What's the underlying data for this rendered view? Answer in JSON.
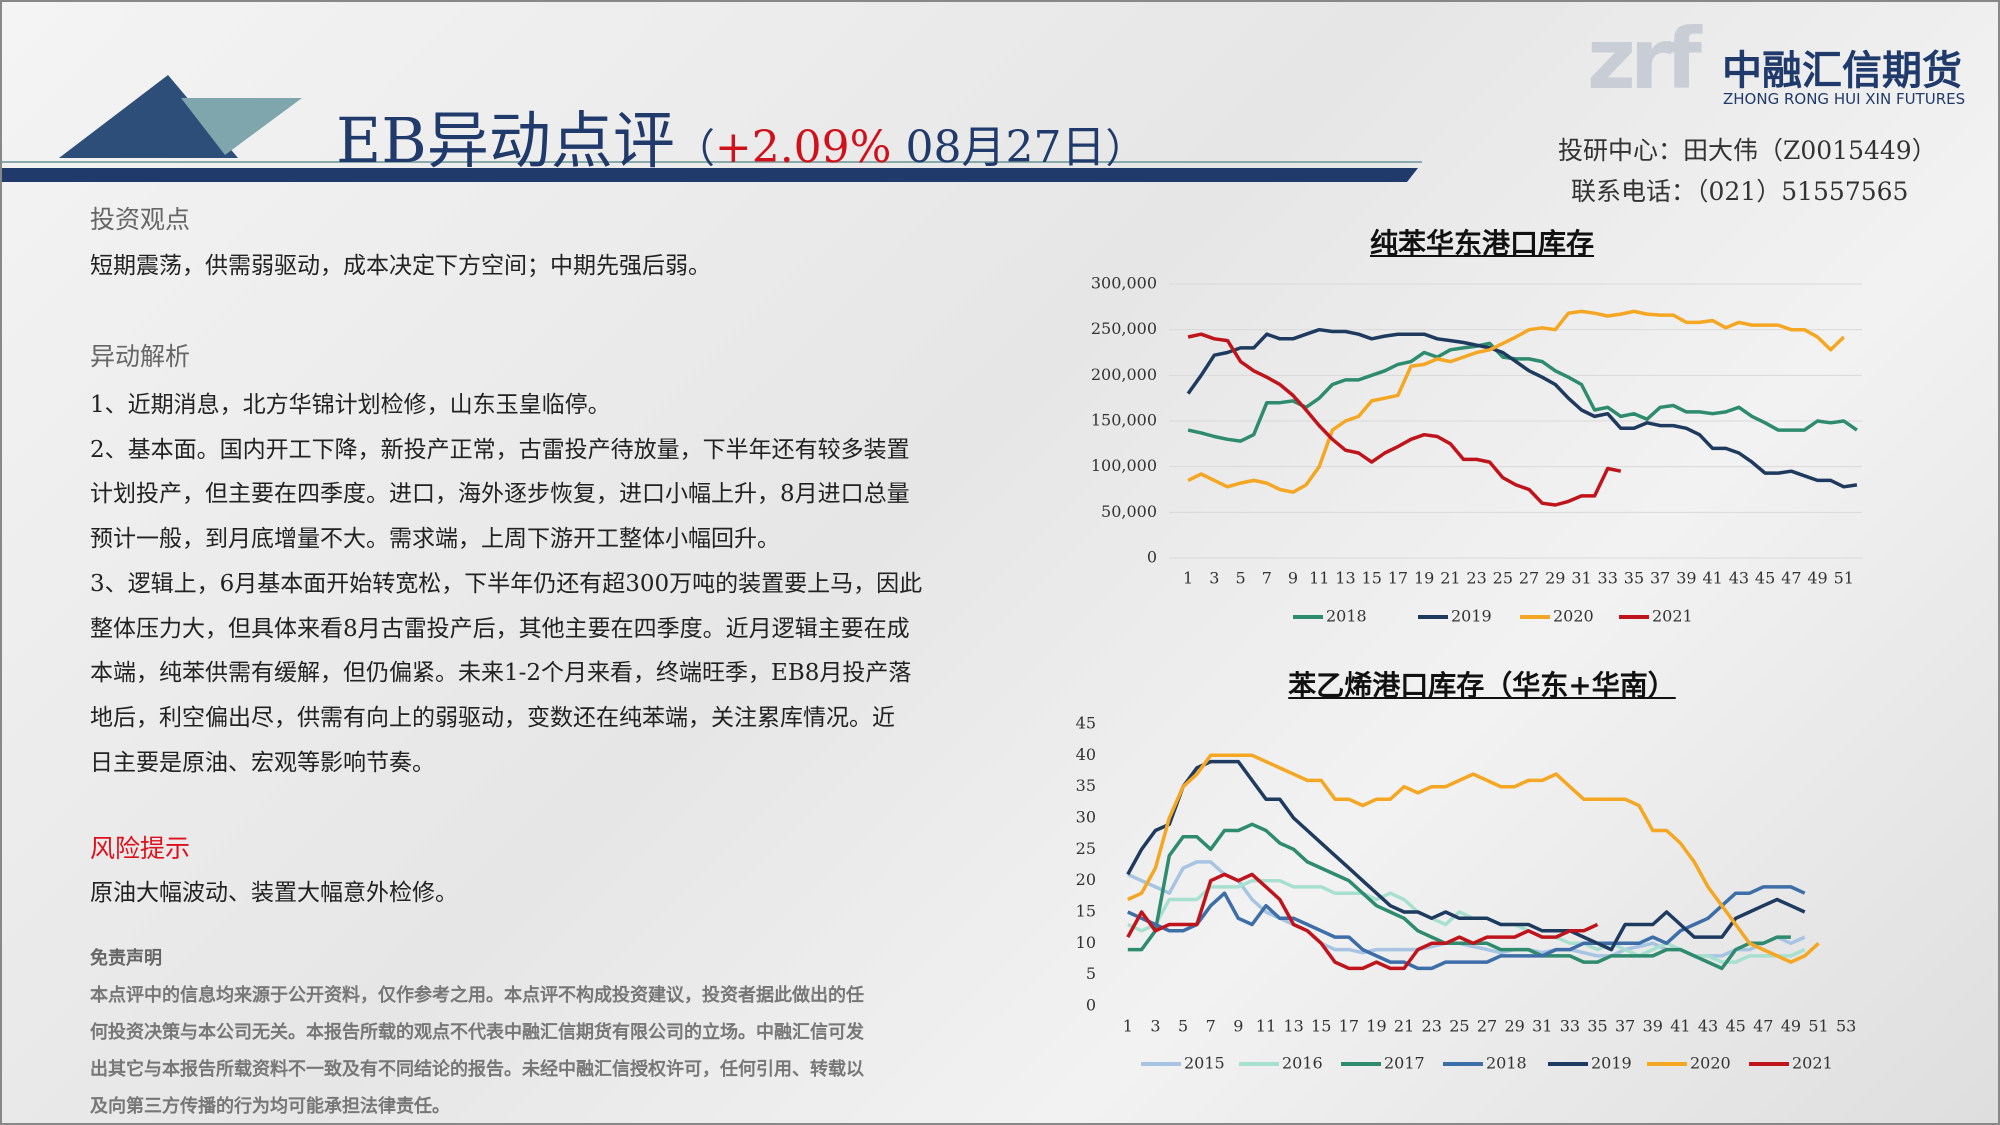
{
  "header": {
    "title": "EB异动点评",
    "open": "（",
    "change": "+2.09%",
    "date": "08月27日",
    "close": "）",
    "logo_mark": "zrf",
    "logo_name": "中融汇信期货",
    "logo_en": "ZHONG RONG HUI XIN FUTURES",
    "analyst": "投研中心：田大伟（Z0015449）",
    "phone": "联系电话：（021）51557565"
  },
  "view": {
    "heading": "投资观点",
    "text": "短期震荡，供需弱驱动，成本决定下方空间；中期先强后弱。"
  },
  "analysis": {
    "heading": "异动解析",
    "lines": [
      "1、近期消息，北方华锦计划检修，山东玉皇临停。",
      "2、基本面。国内开工下降，新投产正常，古雷投产待放量，下半年还有较多装置",
      "计划投产，但主要在四季度。进口，海外逐步恢复，进口小幅上升，8月进口总量",
      "预计一般，到月底增量不大。需求端，上周下游开工整体小幅回升。",
      "3、逻辑上，6月基本面开始转宽松，下半年仍还有超300万吨的装置要上马，因此",
      "整体压力大，但具体来看8月古雷投产后，其他主要在四季度。近月逻辑主要在成",
      "本端，纯苯供需有缓解，但仍偏紧。未来1-2个月来看，终端旺季，EB8月投产落",
      "地后，利空偏出尽，供需有向上的弱驱动，变数还在纯苯端，关注累库情况。近",
      "日主要是原油、宏观等影响节奏。"
    ]
  },
  "risk": {
    "heading": "风险提示",
    "text": "原油大幅波动、装置大幅意外检修。"
  },
  "disclaimer": {
    "heading": "免责声明",
    "lines": [
      "本点评中的信息均来源于公开资料，仅作参考之用。本点评不构成投资建议，投资者据此做出的任",
      "何投资决策与本公司无关。本报告所载的观点不代表中融汇信期货有限公司的立场。中融汇信可发",
      "出其它与本报告所载资料不一致及有不同结论的报告。未经中融汇信授权许可，任何引用、转载以",
      "及向第三方传播的行为均可能承担法律责任。"
    ]
  },
  "chart_data": [
    {
      "type": "line",
      "title": "纯苯华东港口库存",
      "grid": true,
      "legend": "bottom",
      "x": [
        1,
        2,
        3,
        4,
        5,
        6,
        7,
        8,
        9,
        10,
        11,
        12,
        13,
        14,
        15,
        16,
        17,
        18,
        19,
        20,
        21,
        22,
        23,
        24,
        25,
        26,
        27,
        28,
        29,
        30,
        31,
        32,
        33,
        34,
        35,
        36,
        37,
        38,
        39,
        40,
        41,
        42,
        43,
        44,
        45,
        46,
        47,
        48,
        49,
        50,
        51,
        52
      ],
      "xlim": [
        0,
        53
      ],
      "xticks": [
        1,
        3,
        5,
        7,
        9,
        11,
        13,
        15,
        17,
        19,
        21,
        23,
        25,
        27,
        29,
        31,
        33,
        35,
        37,
        39,
        41,
        43,
        45,
        47,
        49,
        51
      ],
      "ylim": [
        0,
        300000
      ],
      "yticks": [
        0,
        {
          "value": 50000,
          "label": "50,000"
        },
        {
          "value": 100000,
          "label": "100,000"
        },
        {
          "value": 150000,
          "label": "150,000"
        },
        {
          "value": 200000,
          "label": "200,000"
        },
        {
          "value": 250000,
          "label": "250,000"
        },
        {
          "value": 300000,
          "label": "300,000"
        }
      ],
      "series": [
        {
          "name": "2018",
          "color": "#2e8b6e",
          "values": [
            140000,
            137000,
            133000,
            130000,
            128000,
            135000,
            170000,
            170000,
            172000,
            165000,
            175000,
            190000,
            195000,
            195000,
            200000,
            205000,
            212000,
            215000,
            225000,
            220000,
            228000,
            230000,
            232000,
            235000,
            220000,
            218000,
            218000,
            215000,
            205000,
            198000,
            190000,
            162000,
            165000,
            155000,
            158000,
            152000,
            165000,
            167000,
            160000,
            160000,
            158000,
            160000,
            165000,
            155000,
            148000,
            140000,
            140000,
            140000,
            150000,
            148000,
            150000,
            140000
          ]
        },
        {
          "name": "2019",
          "color": "#1f3a5f",
          "values": [
            180000,
            200000,
            222000,
            225000,
            230000,
            230000,
            245000,
            240000,
            240000,
            245000,
            250000,
            248000,
            248000,
            245000,
            240000,
            243000,
            245000,
            245000,
            245000,
            240000,
            238000,
            236000,
            233000,
            230000,
            225000,
            215000,
            205000,
            198000,
            190000,
            175000,
            162000,
            155000,
            158000,
            142000,
            142000,
            148000,
            145000,
            145000,
            142000,
            135000,
            120000,
            120000,
            115000,
            105000,
            93000,
            93000,
            95000,
            90000,
            85000,
            85000,
            78000,
            80000
          ]
        },
        {
          "name": "2020",
          "color": "#f5a623",
          "values": [
            85000,
            92000,
            85000,
            78000,
            82000,
            85000,
            82000,
            75000,
            72000,
            80000,
            100000,
            140000,
            150000,
            155000,
            172000,
            175000,
            178000,
            210000,
            212000,
            218000,
            215000,
            220000,
            225000,
            228000,
            235000,
            242000,
            250000,
            252000,
            250000,
            268000,
            270000,
            268000,
            265000,
            267000,
            270000,
            267000,
            266000,
            266000,
            258000,
            258000,
            260000,
            252000,
            258000,
            255000,
            255000,
            255000,
            250000,
            250000,
            242000,
            228000,
            242000,
            null
          ]
        },
        {
          "name": "2021",
          "color": "#c0141c",
          "values": [
            242000,
            245000,
            240000,
            238000,
            215000,
            205000,
            198000,
            190000,
            178000,
            162000,
            145000,
            130000,
            118000,
            115000,
            105000,
            115000,
            122000,
            130000,
            135000,
            133000,
            125000,
            108000,
            108000,
            105000,
            88000,
            80000,
            75000,
            60000,
            58000,
            62000,
            68000,
            68000,
            98000,
            95000,
            null,
            null,
            null,
            null,
            null,
            null,
            null,
            null,
            null,
            null,
            null,
            null,
            null,
            null,
            null,
            null,
            null,
            null
          ]
        }
      ]
    },
    {
      "type": "line",
      "title": "苯乙烯港口库存（华东+华南）",
      "grid": false,
      "legend": "bottom",
      "x": [
        1,
        2,
        3,
        4,
        5,
        6,
        7,
        8,
        9,
        10,
        11,
        12,
        13,
        14,
        15,
        16,
        17,
        18,
        19,
        20,
        21,
        22,
        23,
        24,
        25,
        26,
        27,
        28,
        29,
        30,
        31,
        32,
        33,
        34,
        35,
        36,
        37,
        38,
        39,
        40,
        41,
        42,
        43,
        44,
        45,
        46,
        47,
        48,
        49,
        50,
        51,
        52,
        53
      ],
      "xlim": [
        0,
        54
      ],
      "xticks": [
        1,
        3,
        5,
        7,
        9,
        11,
        13,
        15,
        17,
        19,
        21,
        23,
        25,
        27,
        29,
        31,
        33,
        35,
        37,
        39,
        41,
        43,
        45,
        47,
        49,
        51,
        53
      ],
      "ylim": [
        0,
        45
      ],
      "yticks": [
        0,
        5,
        10,
        15,
        20,
        25,
        30,
        35,
        40,
        45
      ],
      "series": [
        {
          "name": "2015",
          "color": "#a7c4e2",
          "values": [
            21,
            20,
            19,
            18,
            22,
            23,
            23,
            21,
            20,
            17,
            15,
            14,
            13,
            12,
            10,
            9,
            9,
            8.5,
            9,
            9,
            9,
            9,
            9.5,
            10,
            10,
            9.5,
            9,
            8.5,
            9,
            9,
            8.5,
            9,
            9,
            8.5,
            8,
            8,
            9,
            9.5,
            10,
            9,
            9,
            8,
            8,
            8,
            9,
            9,
            10,
            11,
            10,
            11,
            null,
            null,
            null
          ]
        },
        {
          "name": "2016",
          "color": "#a8e0d0",
          "values": [
            13,
            12,
            13,
            17,
            17,
            17,
            19,
            19,
            19,
            20,
            20,
            20,
            19,
            19,
            19,
            18,
            18,
            18,
            17,
            18,
            17,
            15,
            14,
            13,
            15,
            14,
            14,
            13,
            13,
            12,
            11,
            11,
            10,
            10,
            9,
            10,
            9,
            8,
            9,
            10,
            9,
            8,
            8,
            7,
            7,
            8,
            8,
            8,
            8,
            9,
            null,
            null,
            null
          ]
        },
        {
          "name": "2017",
          "color": "#2e8b6e",
          "values": [
            9,
            9,
            12,
            24,
            27,
            27,
            25,
            28,
            28,
            29,
            28,
            26,
            25,
            23,
            22,
            21,
            20,
            18,
            16,
            15,
            14,
            12,
            11,
            10,
            10,
            10,
            10,
            9,
            9,
            9,
            8,
            8,
            8,
            7,
            7,
            8,
            8,
            8,
            8,
            9,
            9,
            8,
            7,
            6,
            9,
            10,
            10,
            11,
            11,
            null,
            null,
            null,
            null
          ]
        },
        {
          "name": "2018",
          "color": "#3e6ea8",
          "values": [
            15,
            14,
            13,
            12,
            12,
            13,
            16,
            18,
            14,
            13,
            16,
            14,
            14,
            13,
            12,
            11,
            11,
            9,
            8,
            7,
            7,
            6,
            6,
            7,
            7,
            7,
            7,
            8,
            8,
            8,
            8,
            9,
            9,
            10,
            10,
            10,
            10,
            10,
            11,
            10,
            12,
            13,
            14,
            16,
            18,
            18,
            19,
            19,
            19,
            18,
            null,
            null,
            null
          ]
        },
        {
          "name": "2019",
          "color": "#1f3a5f",
          "values": [
            21,
            25,
            28,
            29,
            35,
            38,
            39,
            39,
            39,
            36,
            33,
            33,
            30,
            28,
            26,
            24,
            22,
            20,
            18,
            16,
            15,
            15,
            14,
            15,
            14,
            14,
            14,
            13,
            13,
            13,
            12,
            12,
            12,
            11,
            10,
            9,
            13,
            13,
            13,
            15,
            13,
            11,
            11,
            11,
            14,
            15,
            16,
            17,
            16,
            15,
            null,
            null,
            null
          ]
        },
        {
          "name": "2020",
          "color": "#f5a623",
          "values": [
            17,
            18,
            22,
            30,
            35,
            37,
            40,
            40,
            40,
            40,
            39,
            38,
            37,
            36,
            36,
            33,
            33,
            32,
            33,
            33,
            35,
            34,
            35,
            35,
            36,
            37,
            36,
            35,
            35,
            36,
            36,
            37,
            35,
            33,
            33,
            33,
            33,
            32,
            28,
            28,
            26,
            23,
            19,
            16,
            13,
            10,
            9,
            8,
            7,
            8,
            10,
            null,
            null
          ]
        },
        {
          "name": "2021",
          "color": "#c0141c",
          "values": [
            11,
            15,
            12,
            13,
            13,
            13,
            20,
            21,
            20,
            21,
            19,
            17,
            13,
            12,
            10,
            7,
            6,
            6,
            7,
            6,
            6,
            9,
            10,
            10,
            11,
            10,
            11,
            11,
            11,
            12,
            11,
            11,
            12,
            12,
            13,
            null,
            null,
            null,
            null,
            null,
            null,
            null,
            null,
            null,
            null,
            null,
            null,
            null,
            null,
            null,
            null,
            null,
            null
          ]
        }
      ]
    }
  ]
}
